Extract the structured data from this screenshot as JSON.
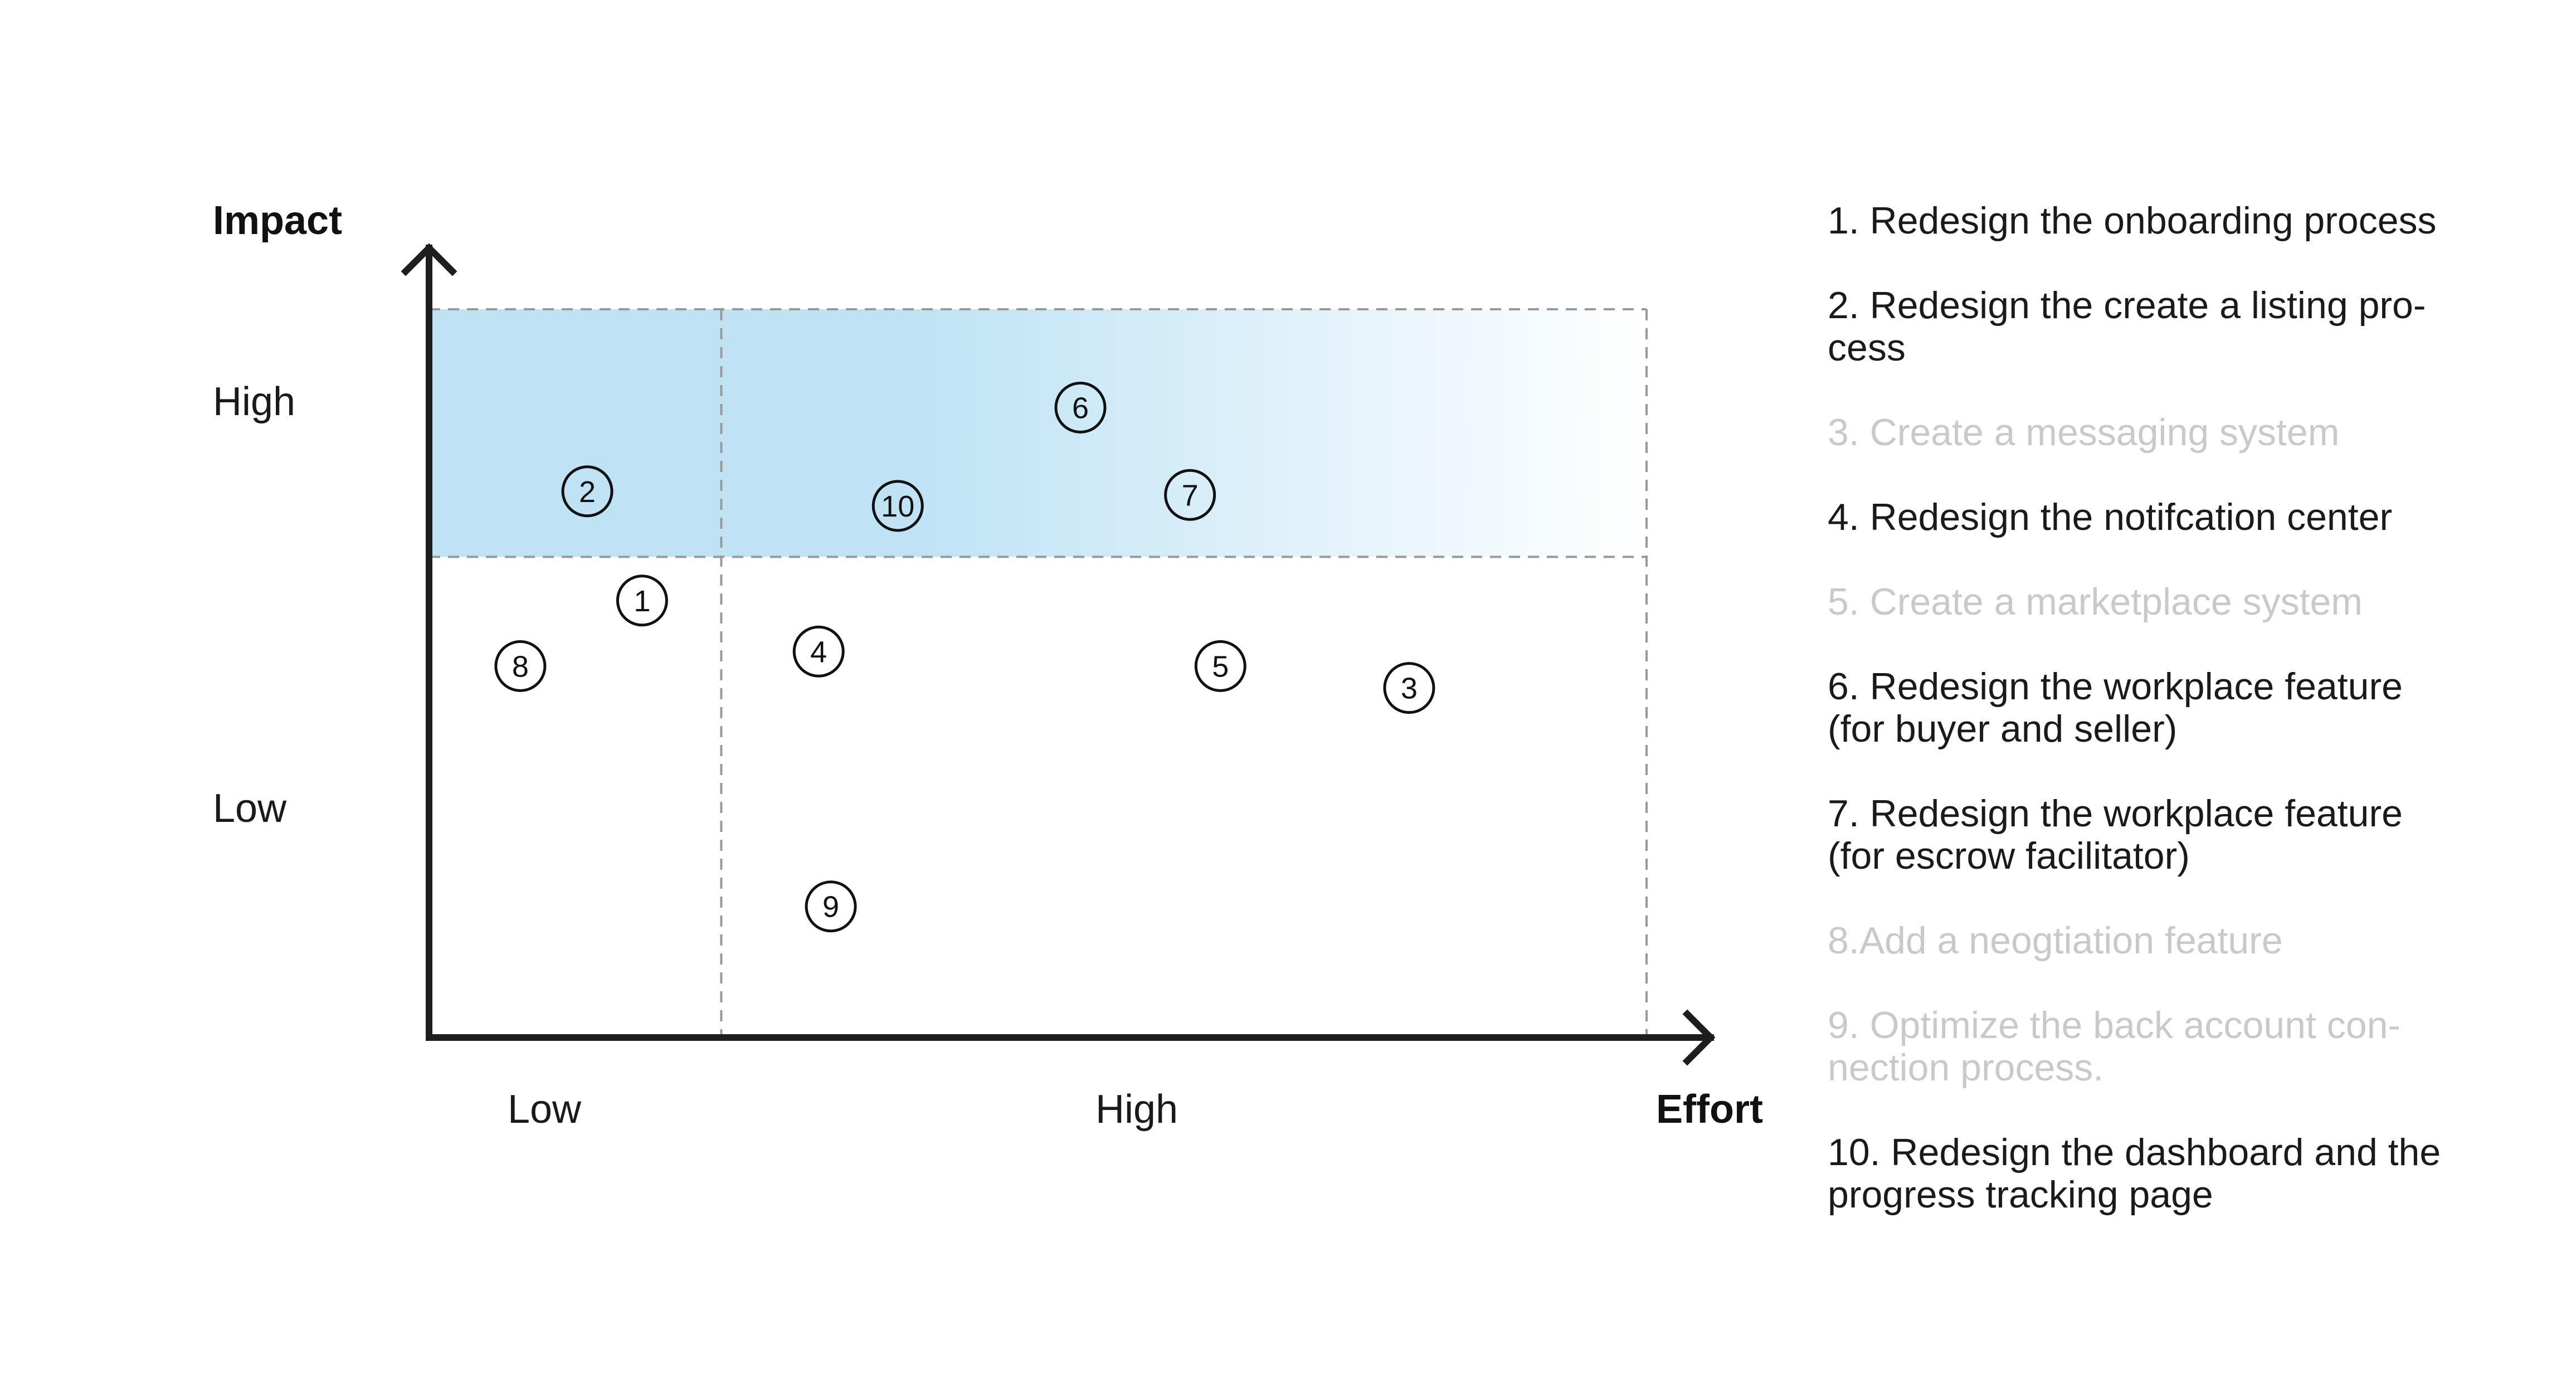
{
  "chart_data": {
    "type": "scatter",
    "title": "",
    "xlabel": "Effort",
    "ylabel": "Impact",
    "x_tick_labels": [
      "Low",
      "High"
    ],
    "y_tick_labels": [
      "High",
      "Low"
    ],
    "xlim": [
      0,
      10
    ],
    "ylim": [
      0,
      10
    ],
    "x_divider": 2.4,
    "y_divider": 6.6,
    "highlight_region": {
      "x": [
        0,
        10
      ],
      "y": [
        6.6,
        10
      ],
      "color": "#bfe3f5"
    },
    "grid": false,
    "legend_position": "right",
    "points": [
      {
        "label": "1",
        "x": 1.75,
        "y": 6.0
      },
      {
        "label": "2",
        "x": 1.3,
        "y": 7.5
      },
      {
        "label": "3",
        "x": 8.05,
        "y": 4.8
      },
      {
        "label": "4",
        "x": 3.2,
        "y": 5.3
      },
      {
        "label": "5",
        "x": 6.5,
        "y": 5.1
      },
      {
        "label": "6",
        "x": 5.35,
        "y": 8.65
      },
      {
        "label": "7",
        "x": 6.25,
        "y": 7.45
      },
      {
        "label": "8",
        "x": 0.75,
        "y": 5.1
      },
      {
        "label": "9",
        "x": 3.3,
        "y": 1.8
      },
      {
        "label": "10",
        "x": 3.85,
        "y": 7.3
      }
    ]
  },
  "legend": {
    "items": [
      {
        "text": "1. Redesign the onboarding process",
        "active": true
      },
      {
        "text": "2. Redesign the create a listing pro-\ncess",
        "active": true
      },
      {
        "text": "3. Create a messaging system",
        "active": false
      },
      {
        "text": "4. Redesign the notifcation center",
        "active": true
      },
      {
        "text": "5. Create a marketplace system",
        "active": false
      },
      {
        "text": "6. Redesign the workplace feature\n(for buyer and seller)",
        "active": true
      },
      {
        "text": "7. Redesign the workplace feature\n(for escrow facilitator)",
        "active": true
      },
      {
        "text": "8.Add a neogtiation feature",
        "active": false
      },
      {
        "text": "9. Optimize the back account con-\nnection process.",
        "active": false
      },
      {
        "text": "10. Redesign the dashboard and the\nprogress tracking page",
        "active": true
      }
    ]
  }
}
